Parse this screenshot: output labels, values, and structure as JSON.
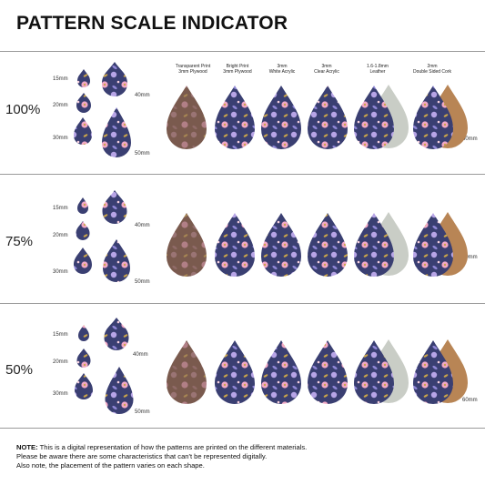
{
  "title": "PATTERN SCALE INDICATOR",
  "materials": [
    {
      "line1": "Transparent Print",
      "line2": "3mm Plywood"
    },
    {
      "line1": "Bright Print",
      "line2": "3mm Plywood"
    },
    {
      "line1": "3mm",
      "line2": "White Acrylic"
    },
    {
      "line1": "3mm",
      "line2": "Clear Acrylic"
    },
    {
      "line1": "1.6-1.8mm",
      "line2": "Leather"
    },
    {
      "line1": "2mm",
      "line2": "Double Sided Cork"
    }
  ],
  "sections": [
    {
      "scale": "100%",
      "sizes": [
        "15mm",
        "20mm",
        "30mm",
        "40mm",
        "50mm"
      ],
      "side_label": "60mm"
    },
    {
      "scale": "75%",
      "sizes": [
        "15mm",
        "20mm",
        "30mm",
        "40mm",
        "50mm"
      ],
      "side_label": "60mm"
    },
    {
      "scale": "50%",
      "sizes": [
        "15mm",
        "20mm",
        "30mm",
        "40mm",
        "50mm"
      ],
      "side_label": "60mm"
    }
  ],
  "colors": {
    "navy": "#3a3f72",
    "plywood": "#7a5a4e",
    "leather": "#c9cdc6",
    "cork": "#b88555",
    "pink": "#f2a9c6",
    "lavender": "#8f86d6",
    "mustard": "#c8a34a"
  },
  "note": {
    "label": "NOTE:",
    "line1": "This is a digital representation of how the patterns are printed on the different materials.",
    "line2": "Please be aware there are some characteristics that can't be represented digitally.",
    "line3": "Also note, the placement of the pattern varies on each shape."
  }
}
